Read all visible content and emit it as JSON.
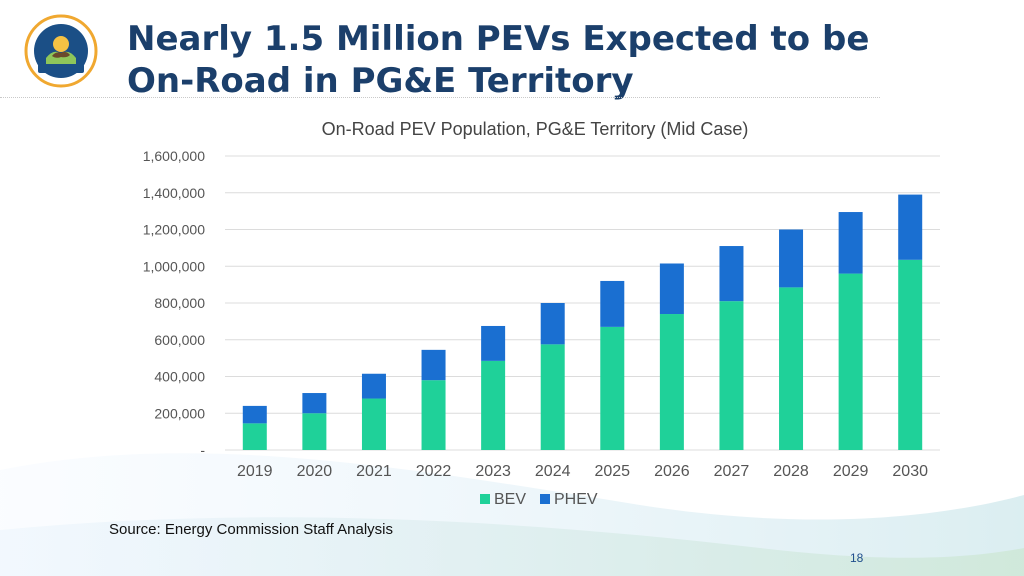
{
  "slide": {
    "title_line1": "Nearly 1.5 Million PEVs Expected to be",
    "title_line2": "On-Road in PG&E Territory",
    "source": "Source: Energy Commission Staff Analysis",
    "page_number": "18"
  },
  "logo": {
    "icon": "california-energy-commission-seal",
    "top_text": "STATE OF CALIFORNIA",
    "bottom_text": "ENERGY COMMISSION",
    "ring_color": "#f0a830",
    "center_color": "#1b4f86"
  },
  "chart_data": {
    "type": "bar",
    "stacked": true,
    "title": "On-Road PEV Population, PG&E Territory (Mid Case)",
    "categories": [
      "2019",
      "2020",
      "2021",
      "2022",
      "2023",
      "2024",
      "2025",
      "2026",
      "2027",
      "2028",
      "2029",
      "2030"
    ],
    "series": [
      {
        "name": "BEV",
        "color": "#1fd199",
        "values": [
          145000,
          200000,
          280000,
          380000,
          485000,
          575000,
          670000,
          740000,
          810000,
          885000,
          960000,
          1035000
        ]
      },
      {
        "name": "PHEV",
        "color": "#1a6fd1",
        "values": [
          95000,
          110000,
          135000,
          165000,
          190000,
          225000,
          250000,
          275000,
          300000,
          315000,
          335000,
          355000
        ]
      }
    ],
    "ylim": [
      0,
      1600000
    ],
    "yticks": [
      0,
      200000,
      400000,
      600000,
      800000,
      1000000,
      1200000,
      1400000,
      1600000
    ],
    "ytick_labels": [
      "-",
      "200,000",
      "400,000",
      "600,000",
      "800,000",
      "1,000,000",
      "1,200,000",
      "1,400,000",
      "1,600,000"
    ],
    "grid": true,
    "legend_position": "bottom"
  }
}
